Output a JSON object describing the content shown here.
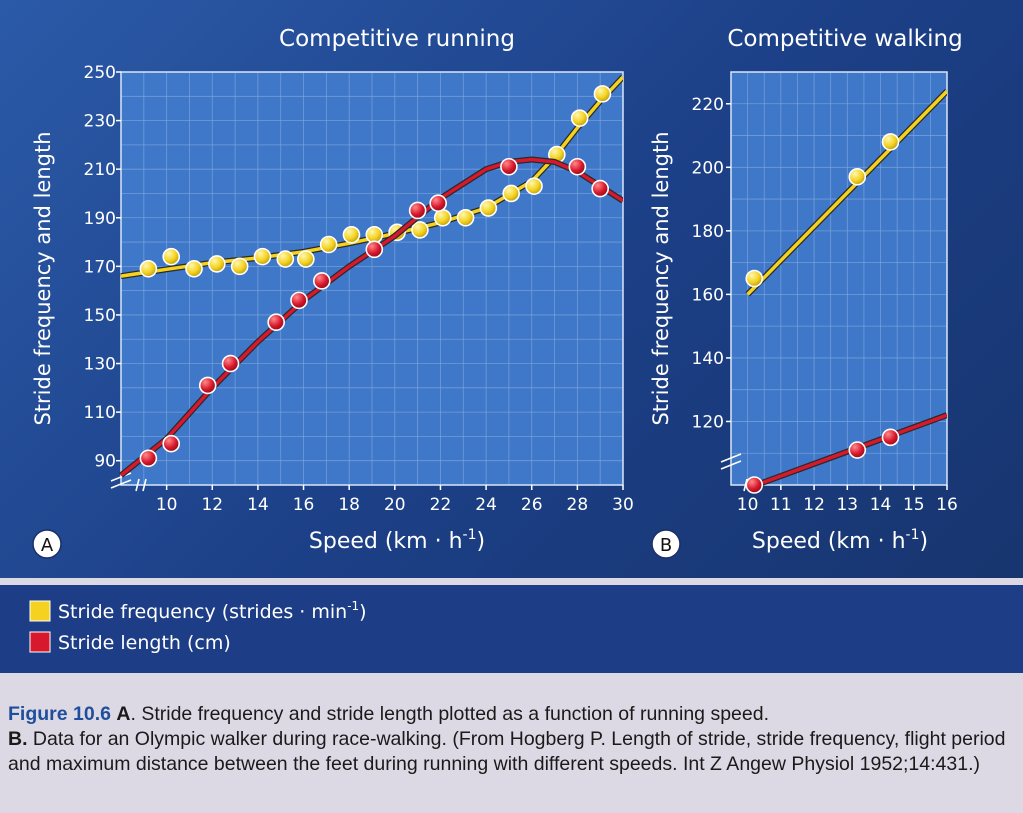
{
  "chart_data": [
    {
      "type": "scatter",
      "panel_letter": "A",
      "title": "Competitive running",
      "xlabel": "Speed (km · h",
      "xlabel_sup": "-1",
      "xlabel_close": ")",
      "ylabel": "Stride frequency and length",
      "xlim": [
        8,
        30
      ],
      "ylim": [
        80,
        250
      ],
      "xticks": [
        10,
        12,
        14,
        16,
        18,
        20,
        22,
        24,
        26,
        28,
        30
      ],
      "yticks": [
        90,
        110,
        130,
        150,
        170,
        190,
        210,
        230,
        250
      ],
      "grid": true,
      "series": [
        {
          "name": "Stride frequency (strides · min-1)",
          "color": "#f4d21f",
          "points": [
            [
              9.2,
              169
            ],
            [
              10.2,
              174
            ],
            [
              11.2,
              169
            ],
            [
              12.2,
              171
            ],
            [
              13.2,
              170
            ],
            [
              14.2,
              174
            ],
            [
              15.2,
              173
            ],
            [
              16.1,
              173
            ],
            [
              17.1,
              179
            ],
            [
              18.1,
              183
            ],
            [
              19.1,
              183
            ],
            [
              20.1,
              184
            ],
            [
              21.1,
              185
            ],
            [
              22.1,
              190
            ],
            [
              23.1,
              190
            ],
            [
              24.1,
              194
            ],
            [
              25.1,
              200
            ],
            [
              26.1,
              203
            ],
            [
              27.1,
              216
            ],
            [
              28.1,
              231
            ],
            [
              29.1,
              241
            ]
          ],
          "curve": [
            [
              8,
              166
            ],
            [
              10,
              168.8
            ],
            [
              12,
              171.5
            ],
            [
              14,
              173.5
            ],
            [
              16,
              176
            ],
            [
              18,
              179.5
            ],
            [
              20,
              183.5
            ],
            [
              22,
              188
            ],
            [
              24,
              194
            ],
            [
              26,
              205
            ],
            [
              27,
              215
            ],
            [
              28,
              227
            ],
            [
              29,
              238
            ],
            [
              30,
              248
            ]
          ]
        },
        {
          "name": "Stride length (cm)",
          "color": "#d8182c",
          "points": [
            [
              9.2,
              91
            ],
            [
              10.2,
              97
            ],
            [
              11.8,
              121
            ],
            [
              12.8,
              130
            ],
            [
              14.8,
              147
            ],
            [
              15.8,
              156
            ],
            [
              16.8,
              164
            ],
            [
              19.1,
              177
            ],
            [
              21.0,
              193
            ],
            [
              21.9,
              196
            ],
            [
              25.0,
              211
            ],
            [
              28.0,
              211
            ],
            [
              29.0,
              202
            ]
          ],
          "curve": [
            [
              8,
              84
            ],
            [
              10,
              99
            ],
            [
              12,
              120
            ],
            [
              14,
              139
            ],
            [
              16,
              156
            ],
            [
              18,
              170
            ],
            [
              20,
              182.5
            ],
            [
              22,
              198
            ],
            [
              24,
              210
            ],
            [
              25,
              213
            ],
            [
              26,
              214
            ],
            [
              27,
              213
            ],
            [
              28,
              209
            ],
            [
              29,
              203
            ],
            [
              30,
              197
            ]
          ]
        }
      ]
    },
    {
      "type": "scatter",
      "panel_letter": "B",
      "title": "Competitive walking",
      "xlabel": "Speed (km · h",
      "xlabel_sup": "-1",
      "xlabel_close": ")",
      "ylabel": "Stride frequency and length",
      "xlim": [
        9.5,
        16
      ],
      "ylim": [
        100,
        230
      ],
      "xticks": [
        10,
        11,
        12,
        13,
        14,
        15,
        16
      ],
      "yticks": [
        120,
        140,
        160,
        180,
        200,
        220
      ],
      "grid": true,
      "series": [
        {
          "name": "Stride frequency (strides · min-1)",
          "color": "#f4d21f",
          "points": [
            [
              10.2,
              165
            ],
            [
              13.3,
              197
            ],
            [
              14.3,
              208
            ]
          ],
          "curve": [
            [
              10,
              160
            ],
            [
              16,
              224
            ]
          ]
        },
        {
          "name": "Stride length (cm)",
          "color": "#d8182c",
          "points": [
            [
              10.2,
              100
            ],
            [
              13.3,
              111
            ],
            [
              14.3,
              115
            ]
          ],
          "curve": [
            [
              10,
              99
            ],
            [
              16,
              122
            ]
          ]
        }
      ]
    }
  ],
  "legend": {
    "items": [
      {
        "label": "Stride frequency (strides · min",
        "sup": "-1",
        "close": ")",
        "color": "#f4d21f"
      },
      {
        "label": "Stride length (cm)",
        "sup": "",
        "close": "",
        "color": "#d8182c"
      }
    ]
  },
  "caption": {
    "fig_label": "Figure 10.6",
    "part_a_label": "A",
    "part_a_text": ". Stride frequency and stride length plotted as a function of running speed.",
    "part_b_label": "B.",
    "part_b_text": " Data for an Olympic walker during race-walking. (From Hogberg P. Length of stride, stride frequency, flight period and maximum distance between the feet during running with different speeds. Int Z Angew Physiol 1952;14:431.)"
  }
}
